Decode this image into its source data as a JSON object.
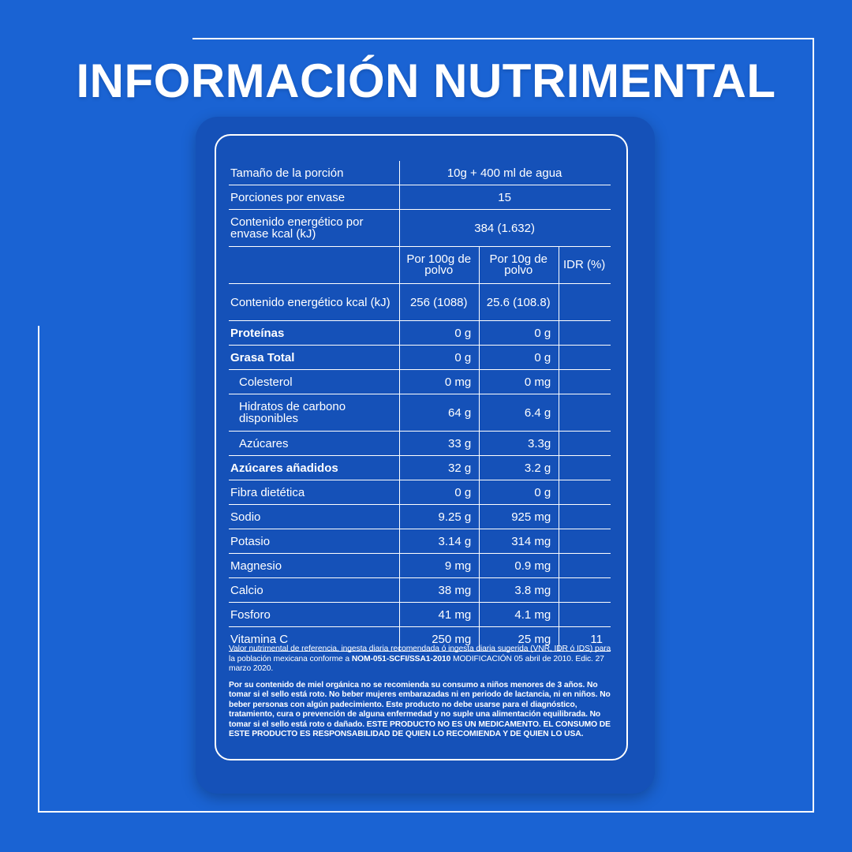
{
  "title": "INFORMACIÓN NUTRIMENTAL",
  "serving": {
    "size_label": "Tamaño de la porción",
    "size_value": "10g + 400 ml de agua",
    "portions_label": "Porciones por envase",
    "portions_value": "15",
    "energy_label": "Contenido energético por envase kcal (kJ)",
    "energy_value": "384 (1.632)"
  },
  "columns": {
    "per100": "Por 100g de polvo",
    "per10": "Por 10g de polvo",
    "idr": "IDR (%)"
  },
  "rows": [
    {
      "label": "Contenido energético kcal (kJ)",
      "per100": "256 (1088)",
      "per10": "25.6 (108.8)",
      "idr": ""
    },
    {
      "label": "Proteínas",
      "per100": "0 g",
      "per10": "0 g",
      "idr": ""
    },
    {
      "label": "Grasa Total",
      "per100": "0 g",
      "per10": "0 g",
      "idr": ""
    },
    {
      "label": "Colesterol",
      "per100": "0 mg",
      "per10": "0 mg",
      "idr": ""
    },
    {
      "label": "Hidratos de carbono disponibles",
      "per100": "64 g",
      "per10": "6.4 g",
      "idr": ""
    },
    {
      "label": "Azúcares",
      "per100": "33 g",
      "per10": "3.3g",
      "idr": ""
    },
    {
      "label": "Azúcares añadidos",
      "per100": "32 g",
      "per10": "3.2 g",
      "idr": ""
    },
    {
      "label": "Fibra dietética",
      "per100": "0 g",
      "per10": "0 g",
      "idr": ""
    },
    {
      "label": "Sodio",
      "per100": "9.25 g",
      "per10": "925 mg",
      "idr": ""
    },
    {
      "label": "Potasio",
      "per100": "3.14 g",
      "per10": "314 mg",
      "idr": ""
    },
    {
      "label": "Magnesio",
      "per100": "9 mg",
      "per10": "0.9 mg",
      "idr": ""
    },
    {
      "label": "Calcio",
      "per100": "38 mg",
      "per10": "3.8 mg",
      "idr": ""
    },
    {
      "label": "Fosforo",
      "per100": "41 mg",
      "per10": "4.1 mg",
      "idr": ""
    },
    {
      "label": "Vitamina C",
      "per100": "250 mg",
      "per10": "25 mg",
      "idr": "11"
    }
  ],
  "notes": {
    "reference_pre": "Valor nutrimental de referencia, ingesta diaria recomendada ó ingesta diaria sugerida (VNR, IDR ó IDS) para la población mexicana conforme a ",
    "reference_norm": "NOM-051-SCFI/SSA1-2010",
    "reference_post": " MODIFICACIÓN 05 abril de 2010. Edic. 27 marzo 2020.",
    "warning": "Por su contenido de miel orgánica no se recomienda su consumo a niños menores de 3 años. No tomar si el sello está roto. No beber mujeres embarazadas ni en periodo de lactancia, ni en niños. No beber personas con algún padecimiento. Este producto no debe usarse para el diagnóstico, tratamiento, cura o prevención de alguna enfermedad y no suple una alimentación equilibrada. No tomar si el sello está roto o dañado. ESTE PRODUCTO NO ES UN MEDICAMENTO. EL CONSUMO DE ESTE PRODUCTO ES RESPONSABILIDAD DE QUIEN LO RECOMIENDA Y DE QUIEN LO USA."
  },
  "colors": {
    "background": "#1a63d3",
    "panel": "#1551b8",
    "text": "#ffffff"
  }
}
